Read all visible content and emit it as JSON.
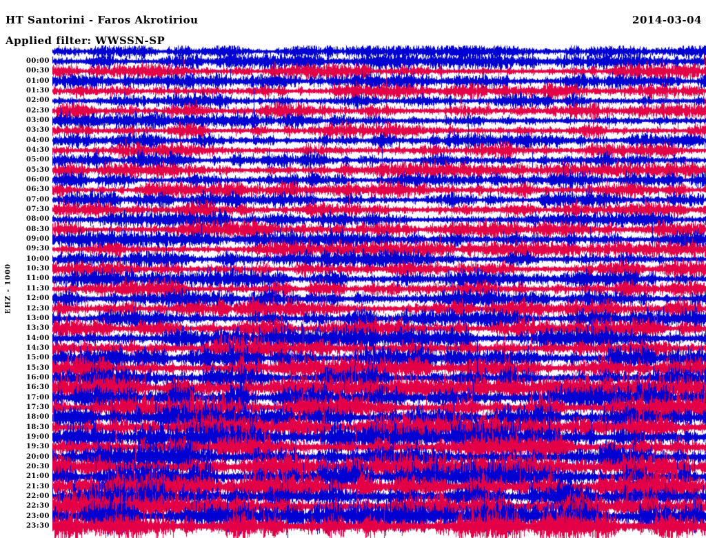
{
  "header": {
    "title": "HT Santorini - Faros Akrotiriou",
    "date": "2014-03-04",
    "filter_line": "Applied filter: WWSSN-SP"
  },
  "chart_data": {
    "type": "line",
    "subtype": "helicorder-seismogram",
    "title": "HT Santorini - Faros Akrotiriou",
    "date": "2014-03-04",
    "applied_filter": "WWSSN-SP",
    "ylabel": "EHZ - 1000",
    "minutes_per_row": 30,
    "num_rows": 48,
    "grid": false,
    "legend_position": "none",
    "colors": {
      "blue": "#0000d2",
      "red": "#e40046"
    },
    "leading_partial_row": {
      "color": "blue",
      "amplitude": 6
    },
    "rows": [
      {
        "time": "00:00",
        "color": "blue",
        "amplitude": 7
      },
      {
        "time": "00:30",
        "color": "red",
        "amplitude": 7
      },
      {
        "time": "01:00",
        "color": "blue",
        "amplitude": 7
      },
      {
        "time": "01:30",
        "color": "red",
        "amplitude": 7
      },
      {
        "time": "02:00",
        "color": "blue",
        "amplitude": 7
      },
      {
        "time": "02:30",
        "color": "red",
        "amplitude": 7
      },
      {
        "time": "03:00",
        "color": "blue",
        "amplitude": 7
      },
      {
        "time": "03:30",
        "color": "red",
        "amplitude": 7
      },
      {
        "time": "04:00",
        "color": "blue",
        "amplitude": 7
      },
      {
        "time": "04:30",
        "color": "red",
        "amplitude": 7
      },
      {
        "time": "05:00",
        "color": "blue",
        "amplitude": 7
      },
      {
        "time": "05:30",
        "color": "red",
        "amplitude": 7
      },
      {
        "time": "06:00",
        "color": "blue",
        "amplitude": 7
      },
      {
        "time": "06:30",
        "color": "red",
        "amplitude": 7
      },
      {
        "time": "07:00",
        "color": "blue",
        "amplitude": 7
      },
      {
        "time": "07:30",
        "color": "red",
        "amplitude": 7
      },
      {
        "time": "08:00",
        "color": "blue",
        "amplitude": 7.5
      },
      {
        "time": "08:30",
        "color": "red",
        "amplitude": 7.5
      },
      {
        "time": "09:00",
        "color": "blue",
        "amplitude": 7.5
      },
      {
        "time": "09:30",
        "color": "red",
        "amplitude": 7.5
      },
      {
        "time": "10:00",
        "color": "blue",
        "amplitude": 8
      },
      {
        "time": "10:30",
        "color": "red",
        "amplitude": 8
      },
      {
        "time": "11:00",
        "color": "blue",
        "amplitude": 8
      },
      {
        "time": "11:30",
        "color": "red",
        "amplitude": 8
      },
      {
        "time": "12:00",
        "color": "blue",
        "amplitude": 8.5
      },
      {
        "time": "12:30",
        "color": "red",
        "amplitude": 8.5
      },
      {
        "time": "13:00",
        "color": "blue",
        "amplitude": 8.5
      },
      {
        "time": "13:30",
        "color": "red",
        "amplitude": 8.5
      },
      {
        "time": "14:00",
        "color": "blue",
        "amplitude": 10
      },
      {
        "time": "14:30",
        "color": "red",
        "amplitude": 10
      },
      {
        "time": "15:00",
        "color": "blue",
        "amplitude": 10
      },
      {
        "time": "15:30",
        "color": "red",
        "amplitude": 10
      },
      {
        "time": "16:00",
        "color": "blue",
        "amplitude": 10.5
      },
      {
        "time": "16:30",
        "color": "red",
        "amplitude": 10.5
      },
      {
        "time": "17:00",
        "color": "blue",
        "amplitude": 11
      },
      {
        "time": "17:30",
        "color": "red",
        "amplitude": 11
      },
      {
        "time": "18:00",
        "color": "blue",
        "amplitude": 11.5
      },
      {
        "time": "18:30",
        "color": "red",
        "amplitude": 11.5
      },
      {
        "time": "19:00",
        "color": "blue",
        "amplitude": 12
      },
      {
        "time": "19:30",
        "color": "red",
        "amplitude": 12
      },
      {
        "time": "20:00",
        "color": "blue",
        "amplitude": 12
      },
      {
        "time": "20:30",
        "color": "red",
        "amplitude": 12
      },
      {
        "time": "21:00",
        "color": "blue",
        "amplitude": 12.5
      },
      {
        "time": "21:30",
        "color": "red",
        "amplitude": 12.5
      },
      {
        "time": "22:00",
        "color": "blue",
        "amplitude": 13
      },
      {
        "time": "22:30",
        "color": "red",
        "amplitude": 13
      },
      {
        "time": "23:00",
        "color": "blue",
        "amplitude": 13
      },
      {
        "time": "23:30",
        "color": "red",
        "amplitude": 13
      }
    ]
  }
}
